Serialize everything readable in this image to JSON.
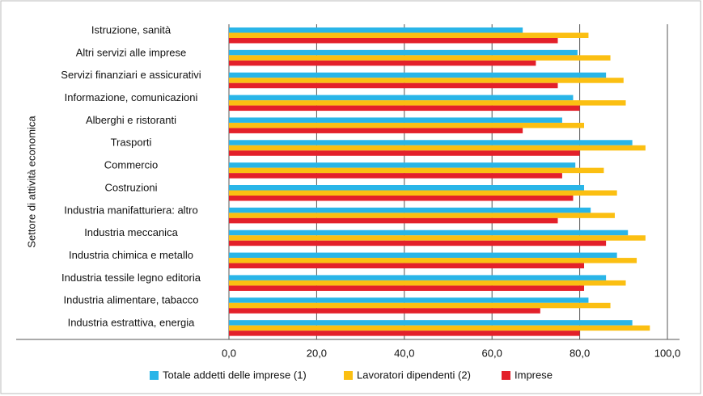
{
  "chart_data": {
    "type": "hbar",
    "y_axis_label": "Settore di attività economica",
    "categories": [
      "Istruzione, sanità",
      "Altri servizi alle imprese",
      "Servizi finanziari e assicurativi",
      "Informazione, comunicazioni",
      "Alberghi e ristoranti",
      "Trasporti",
      "Commercio",
      "Costruzioni",
      "Industria manifatturiera: altro",
      "Industria meccanica",
      "Industria chimica e metallo",
      "Industria tessile legno editoria",
      "Industria alimentare, tabacco",
      "Industria estrattiva, energia"
    ],
    "series": [
      {
        "name": "Totale addetti delle imprese (1)",
        "color": "#29b5e8",
        "values": [
          67,
          79.5,
          86,
          78.5,
          76,
          92,
          79,
          81,
          82.5,
          91,
          88.5,
          86,
          82,
          92
        ]
      },
      {
        "name": "Lavoratori dipendenti (2)",
        "color": "#fbbf12",
        "values": [
          82,
          87,
          90,
          90.5,
          81,
          95,
          85.5,
          88.5,
          88,
          95,
          93,
          90.5,
          87,
          96
        ]
      },
      {
        "name": "Imprese",
        "color": "#e3202a",
        "values": [
          75,
          70,
          75,
          80,
          67,
          80,
          76,
          78.5,
          75,
          86,
          81,
          81,
          71,
          80
        ]
      }
    ],
    "xlim": [
      0,
      100
    ],
    "xticks": [
      {
        "value": 0,
        "label": "0,0"
      },
      {
        "value": 20,
        "label": "20,0"
      },
      {
        "value": 40,
        "label": "40,0"
      },
      {
        "value": 60,
        "label": "60,0"
      },
      {
        "value": 80,
        "label": "80,0"
      },
      {
        "value": 100,
        "label": "100,0"
      }
    ],
    "grid": true,
    "legend": "bottom"
  }
}
